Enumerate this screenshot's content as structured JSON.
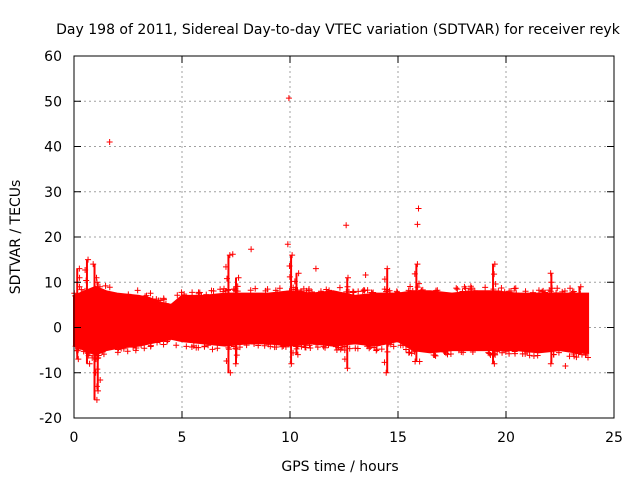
{
  "chart_data": {
    "type": "scatter",
    "title": "Day 198 of 2011, Sidereal Day-to-day VTEC variation (SDTVAR) for receiver reyk",
    "xlabel": "GPS time / hours",
    "ylabel": "SDTVAR / TECUs",
    "xlim": [
      0,
      25
    ],
    "ylim": [
      -20,
      60
    ],
    "xticks": [
      0,
      5,
      10,
      15,
      20,
      25
    ],
    "yticks": [
      -20,
      -10,
      0,
      10,
      20,
      30,
      40,
      50,
      60
    ],
    "grid": true,
    "marker": "+",
    "series_color": "#ff0000",
    "data_x_range": [
      0,
      23.8
    ],
    "dense_band": [
      {
        "x": 0.0,
        "lo": -4,
        "hi": 7
      },
      {
        "x": 0.5,
        "lo": -5,
        "hi": 8
      },
      {
        "x": 1.0,
        "lo": -6,
        "hi": 9
      },
      {
        "x": 1.5,
        "lo": -5,
        "hi": 8
      },
      {
        "x": 2.0,
        "lo": -4.5,
        "hi": 7.5
      },
      {
        "x": 3.0,
        "lo": -4,
        "hi": 7
      },
      {
        "x": 3.5,
        "lo": -3.5,
        "hi": 6.5
      },
      {
        "x": 4.0,
        "lo": -3,
        "hi": 5.5
      },
      {
        "x": 4.5,
        "lo": -2.5,
        "hi": 5
      },
      {
        "x": 5.0,
        "lo": -3,
        "hi": 7
      },
      {
        "x": 6.0,
        "lo": -3.5,
        "hi": 7
      },
      {
        "x": 7.0,
        "lo": -4,
        "hi": 7.5
      },
      {
        "x": 8.0,
        "lo": -3.5,
        "hi": 7.5
      },
      {
        "x": 9.0,
        "lo": -3.5,
        "hi": 7.5
      },
      {
        "x": 10.0,
        "lo": -4,
        "hi": 8
      },
      {
        "x": 11.0,
        "lo": -3.5,
        "hi": 7.5
      },
      {
        "x": 12.0,
        "lo": -4,
        "hi": 8
      },
      {
        "x": 13.0,
        "lo": -3.5,
        "hi": 7
      },
      {
        "x": 14.0,
        "lo": -4,
        "hi": 7.5
      },
      {
        "x": 15.0,
        "lo": -3,
        "hi": 7.5
      },
      {
        "x": 15.7,
        "lo": -5,
        "hi": 8
      },
      {
        "x": 16.5,
        "lo": -5.5,
        "hi": 8
      },
      {
        "x": 17.5,
        "lo": -5,
        "hi": 7.5
      },
      {
        "x": 18.5,
        "lo": -5,
        "hi": 8
      },
      {
        "x": 19.5,
        "lo": -5,
        "hi": 8
      },
      {
        "x": 20.5,
        "lo": -5,
        "hi": 7.5
      },
      {
        "x": 21.5,
        "lo": -5.5,
        "hi": 7.5
      },
      {
        "x": 22.5,
        "lo": -5,
        "hi": 7.5
      },
      {
        "x": 23.2,
        "lo": -5.5,
        "hi": 7.5
      },
      {
        "x": 23.8,
        "lo": -5.5,
        "hi": 7.5
      }
    ],
    "spikes": [
      {
        "x": 0.15,
        "lo": -7,
        "hi": 13
      },
      {
        "x": 0.6,
        "lo": -8,
        "hi": 15
      },
      {
        "x": 0.95,
        "lo": -16,
        "hi": 14
      },
      {
        "x": 1.1,
        "lo": -14,
        "hi": 10
      },
      {
        "x": 7.15,
        "lo": -10,
        "hi": 16
      },
      {
        "x": 7.5,
        "lo": -8,
        "hi": 11
      },
      {
        "x": 10.05,
        "lo": -8,
        "hi": 16
      },
      {
        "x": 10.3,
        "lo": -6,
        "hi": 12
      },
      {
        "x": 12.65,
        "lo": -9,
        "hi": 11
      },
      {
        "x": 14.5,
        "lo": -10,
        "hi": 13
      },
      {
        "x": 15.85,
        "lo": -7.5,
        "hi": 14
      },
      {
        "x": 19.4,
        "lo": -8,
        "hi": 14
      },
      {
        "x": 22.1,
        "lo": -8,
        "hi": 12
      },
      {
        "x": 23.4,
        "lo": -6,
        "hi": 9
      }
    ],
    "outliers": [
      {
        "x": 1.65,
        "y": 41
      },
      {
        "x": 9.95,
        "y": 50.7
      },
      {
        "x": 12.6,
        "y": 22.6
      },
      {
        "x": 15.95,
        "y": 26.3
      },
      {
        "x": 15.9,
        "y": 22.8
      },
      {
        "x": 9.9,
        "y": 18.4
      },
      {
        "x": 8.2,
        "y": 17.3
      },
      {
        "x": 7.35,
        "y": 16.2
      },
      {
        "x": 11.2,
        "y": 13.0
      },
      {
        "x": 13.5,
        "y": 11.6
      },
      {
        "x": 22.75,
        "y": -8.5
      },
      {
        "x": 16.0,
        "y": -7.5
      }
    ]
  }
}
